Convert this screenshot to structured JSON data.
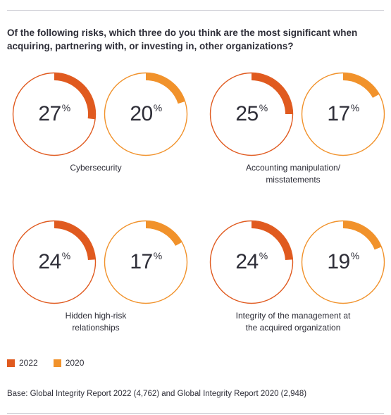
{
  "title": "Of the following risks, which three do you think are the most significant when acquiring, partnering with, or investing in, other organizations?",
  "chart_data": {
    "type": "donut",
    "series": [
      {
        "name": "2022",
        "color": "#e05a1f"
      },
      {
        "name": "2020",
        "color": "#f1922b"
      }
    ],
    "categories": [
      {
        "label_lines": [
          "Cybersecurity"
        ],
        "values": [
          27,
          20
        ]
      },
      {
        "label_lines": [
          "Accounting manipulation/",
          "misstatements"
        ],
        "values": [
          25,
          17
        ]
      },
      {
        "label_lines": [
          "Hidden high-risk",
          "relationships"
        ],
        "values": [
          24,
          17
        ]
      },
      {
        "label_lines": [
          "Integrity of the management at",
          "the acquired organization"
        ],
        "values": [
          24,
          19
        ]
      }
    ],
    "unit": "%"
  },
  "legend": [
    {
      "label": "2022",
      "color": "#e05a1f"
    },
    {
      "label": "2020",
      "color": "#f1922b"
    }
  ],
  "footnote": "Base: Global Integrity Report 2022 (4,762) and Global Integrity Report 2020 (2,948)"
}
